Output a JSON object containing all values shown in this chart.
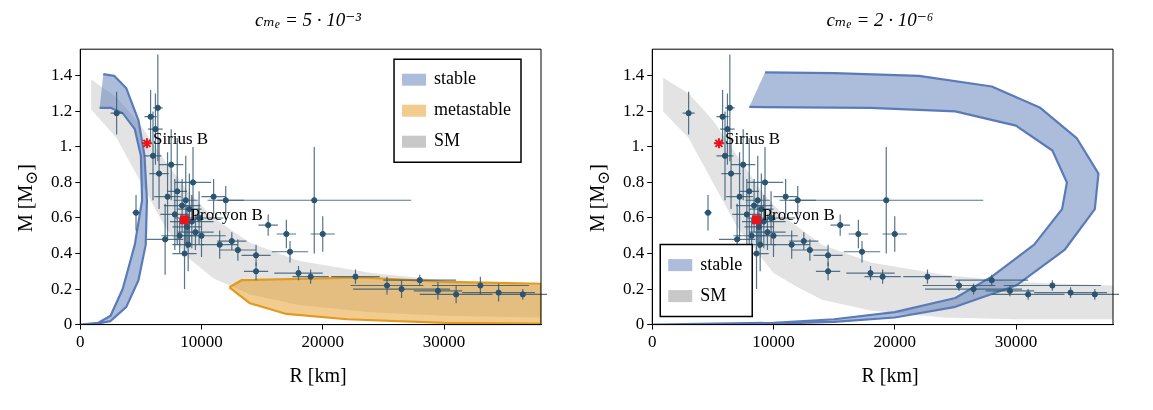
{
  "chart_data": [
    {
      "type": "scatter",
      "title": "cₘₑ = 5 · 10⁻³",
      "xlabel": "R [km]",
      "ylabel": "M [M$_{⊙}$]",
      "xlim": [
        0,
        38000
      ],
      "ylim": [
        0,
        1.55
      ],
      "xticks": [
        0,
        10000,
        20000,
        30000
      ],
      "yticks": [
        0,
        0.2,
        0.4,
        0.6,
        0.8,
        {
          "value": 1,
          "label": "1."
        },
        1.2,
        1.4
      ],
      "legend": "top right",
      "series": [
        {
          "name": "stable",
          "type": "area",
          "color": "#5a7bb8",
          "line_style": "solid",
          "x": [
            1900,
            2800,
            3800,
            4800,
            5300,
            5500,
            5400,
            4800,
            3800,
            2500,
            1000,
            0,
            1500,
            2500,
            3500,
            4500,
            5100,
            5000,
            4500,
            3500,
            2500,
            1600
          ],
          "values": [
            1.41,
            1.4,
            1.33,
            1.15,
            0.95,
            0.7,
            0.45,
            0.25,
            0.1,
            0.02,
            0,
            0,
            0.01,
            0.05,
            0.2,
            0.45,
            0.7,
            0.95,
            1.1,
            1.19,
            1.22,
            1.22
          ]
        },
        {
          "name": "metastable",
          "type": "area",
          "color": "#e3991e",
          "line_style": "solid",
          "x": [
            12300,
            13300,
            23300,
            30000,
            38000,
            38000,
            30000,
            22000,
            17000,
            14000,
            12300
          ],
          "values": [
            0.21,
            0.25,
            0.265,
            0.24,
            0.23,
            0.005,
            0.01,
            0.03,
            0.06,
            0.12,
            0.21
          ]
        },
        {
          "name": "SM",
          "type": "area",
          "color": "#c8c8c8",
          "line_style": "none",
          "x": [
            900,
            3000,
            5000,
            7000,
            9000,
            11000,
            14000,
            18000,
            24000,
            30000,
            38000,
            38000,
            30000,
            24000,
            18000,
            14000,
            11000,
            9000,
            7000,
            5000,
            3000,
            900
          ],
          "values": [
            1.38,
            1.28,
            1.12,
            0.92,
            0.74,
            0.6,
            0.46,
            0.36,
            0.29,
            0.25,
            0.22,
            0.04,
            0.05,
            0.07,
            0.11,
            0.17,
            0.26,
            0.37,
            0.55,
            0.8,
            1.05,
            1.21
          ]
        },
        {
          "type": "scatter",
          "color": "#2c5470",
          "marker": "circle",
          "x": [
            8400,
            8800,
            9000,
            8200,
            9200,
            8700,
            7800,
            9500,
            8900,
            8000,
            9800,
            8600,
            10000,
            9300,
            7500,
            6500,
            6000,
            6200,
            5800,
            6400,
            7200,
            7000,
            11500,
            12500,
            13000,
            14500,
            15500,
            17000,
            17300,
            19300,
            20000,
            14500,
            18000,
            19000,
            22700,
            25300,
            26500,
            28000,
            29500,
            31000,
            33000,
            34500,
            36500,
            3000,
            4600,
            11000,
            12000
          ],
          "values": [
            0.67,
            0.55,
            0.65,
            0.5,
            0.58,
            0.7,
            0.62,
            0.52,
            0.45,
            0.75,
            0.6,
            0.4,
            0.5,
            0.8,
            0.9,
            0.85,
            0.95,
            1.1,
            1.17,
            1.22,
            0.72,
            0.48,
            0.45,
            0.47,
            0.42,
            0.39,
            0.56,
            0.51,
            0.41,
            0.7,
            0.51,
            0.3,
            0.29,
            0.27,
            0.27,
            0.22,
            0.2,
            0.25,
            0.19,
            0.17,
            0.22,
            0.18,
            0.17,
            1.19,
            0.63,
            0.72,
            0.7
          ],
          "xerrors": [
            1500,
            1200,
            1000,
            1500,
            1800,
            1000,
            1200,
            1500,
            1300,
            800,
            2000,
            1000,
            2000,
            1500,
            1000,
            800,
            700,
            600,
            500,
            400,
            1100,
            1500,
            1500,
            1200,
            1500,
            1200,
            800,
            800,
            1500,
            8000,
            1000,
            1000,
            2000,
            1500,
            2000,
            3000,
            4000,
            3000,
            2000,
            3000,
            4000,
            3000,
            2000,
            500,
            300,
            1000,
            1500
          ],
          "errors": [
            0.15,
            0.12,
            0.2,
            0.1,
            0.15,
            0.25,
            0.2,
            0.1,
            0.15,
            0.3,
            0.15,
            0.2,
            0.12,
            0.2,
            0.2,
            0.2,
            0.25,
            0.2,
            0.15,
            0.3,
            0.25,
            0.2,
            0.08,
            0.05,
            0.06,
            0.06,
            0.06,
            0.08,
            0.06,
            0.3,
            0.1,
            0.05,
            0.04,
            0.04,
            0.04,
            0.05,
            0.05,
            0.03,
            0.05,
            0.05,
            0.05,
            0.05,
            0.03,
            0.12,
            0.1,
            0.1,
            0.08
          ]
        },
        {
          "name": "Sirius B",
          "type": "scatter",
          "color": "#e8141c",
          "marker": "cross",
          "x": [
            5500
          ],
          "values": [
            1.02
          ]
        },
        {
          "name": "Procyon B",
          "type": "scatter",
          "color": "#e8141c",
          "marker": "square",
          "x": [
            8600
          ],
          "values": [
            0.59
          ]
        }
      ]
    },
    {
      "type": "scatter",
      "title": "cₘₑ = 2 · 10⁻⁶",
      "xlabel": "R [km]",
      "ylabel": "M [M$_{⊙}$]",
      "xlim": [
        0,
        38000
      ],
      "ylim": [
        0,
        1.55
      ],
      "xticks": [
        0,
        10000,
        20000,
        30000
      ],
      "yticks": [
        0,
        0.2,
        0.4,
        0.6,
        0.8,
        {
          "value": 1,
          "label": "1."
        },
        1.2,
        1.4
      ],
      "legend": "bottom left",
      "series": [
        {
          "name": "stable",
          "type": "area",
          "color": "#5a7bb8",
          "line_style": "solid",
          "x": [
            9300,
            15000,
            22000,
            28000,
            32000,
            35000,
            36800,
            36500,
            34000,
            30000,
            25000,
            20000,
            15000,
            10000,
            0,
            10000,
            15000,
            20000,
            25000,
            28000,
            31500,
            33800,
            34200,
            33000,
            30000,
            25000,
            18000,
            8000
          ],
          "values": [
            1.42,
            1.415,
            1.4,
            1.34,
            1.22,
            1.05,
            0.85,
            0.65,
            0.42,
            0.22,
            0.1,
            0.04,
            0.015,
            0.005,
            0,
            0.01,
            0.03,
            0.07,
            0.15,
            0.27,
            0.45,
            0.65,
            0.8,
            0.98,
            1.12,
            1.2,
            1.22,
            1.225
          ]
        },
        {
          "name": "SM",
          "type": "area",
          "color": "#c8c8c8",
          "line_style": "none",
          "x": [
            900,
            3000,
            5000,
            7000,
            9000,
            11000,
            14000,
            18000,
            24000,
            30000,
            38000,
            38000,
            30000,
            24000,
            18000,
            14000,
            12000,
            10000,
            7000,
            5000,
            3000,
            900
          ],
          "values": [
            1.39,
            1.3,
            1.15,
            0.95,
            0.75,
            0.6,
            0.45,
            0.35,
            0.28,
            0.24,
            0.22,
            0.03,
            0.03,
            0.04,
            0.08,
            0.14,
            0.21,
            0.29,
            0.55,
            0.8,
            1.05,
            1.2
          ]
        },
        {
          "type": "scatter",
          "color": "#2c5470",
          "marker": "circle",
          "x": [
            8400,
            8800,
            9000,
            8200,
            9200,
            8700,
            7800,
            9500,
            8900,
            8000,
            9800,
            8600,
            10000,
            9300,
            7500,
            6500,
            6000,
            6200,
            5800,
            6400,
            7200,
            7000,
            11500,
            12500,
            13000,
            14500,
            15500,
            17000,
            17300,
            19300,
            20000,
            14500,
            18000,
            19000,
            22700,
            25300,
            26500,
            28000,
            29500,
            31000,
            33000,
            34500,
            36500,
            3000,
            4600,
            11000,
            12000
          ],
          "values": [
            0.67,
            0.55,
            0.65,
            0.5,
            0.58,
            0.7,
            0.62,
            0.52,
            0.45,
            0.75,
            0.6,
            0.4,
            0.5,
            0.8,
            0.9,
            0.85,
            0.95,
            1.1,
            1.17,
            1.22,
            0.72,
            0.48,
            0.45,
            0.47,
            0.42,
            0.39,
            0.56,
            0.51,
            0.41,
            0.7,
            0.51,
            0.3,
            0.29,
            0.27,
            0.27,
            0.22,
            0.2,
            0.25,
            0.19,
            0.17,
            0.22,
            0.18,
            0.17,
            1.19,
            0.63,
            0.72,
            0.7
          ],
          "xerrors": [
            1500,
            1200,
            1000,
            1500,
            1800,
            1000,
            1200,
            1500,
            1300,
            800,
            2000,
            1000,
            2000,
            1500,
            1000,
            800,
            700,
            600,
            500,
            400,
            1100,
            1500,
            1500,
            1200,
            1500,
            1200,
            800,
            800,
            1500,
            8000,
            1000,
            1000,
            2000,
            1500,
            2000,
            3000,
            4000,
            3000,
            2000,
            3000,
            4000,
            3000,
            2000,
            500,
            300,
            1000,
            1500
          ],
          "errors": [
            0.15,
            0.12,
            0.2,
            0.1,
            0.15,
            0.25,
            0.2,
            0.1,
            0.15,
            0.3,
            0.15,
            0.2,
            0.12,
            0.2,
            0.2,
            0.2,
            0.25,
            0.2,
            0.15,
            0.3,
            0.25,
            0.2,
            0.08,
            0.05,
            0.06,
            0.06,
            0.06,
            0.08,
            0.06,
            0.3,
            0.1,
            0.05,
            0.04,
            0.04,
            0.04,
            0.03,
            0.03,
            0.03,
            0.03,
            0.03,
            0.03,
            0.03,
            0.03,
            0.12,
            0.1,
            0.1,
            0.08
          ]
        },
        {
          "name": "Sirius B",
          "type": "scatter",
          "color": "#e8141c",
          "marker": "cross",
          "x": [
            5500
          ],
          "values": [
            1.02
          ]
        },
        {
          "name": "Procyon B",
          "type": "scatter",
          "color": "#e8141c",
          "marker": "square",
          "x": [
            8600
          ],
          "values": [
            0.59
          ]
        }
      ]
    }
  ]
}
